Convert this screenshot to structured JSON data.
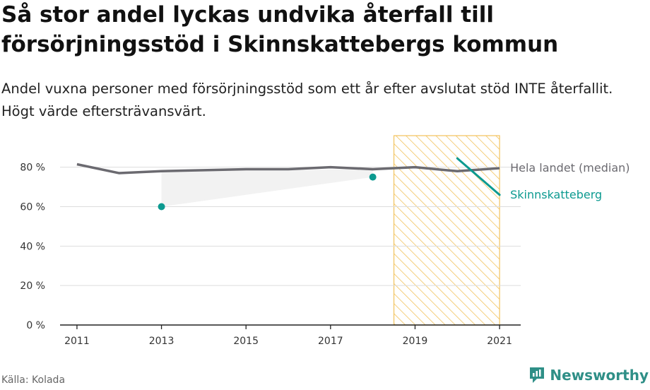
{
  "title": "Så stor andel lyckas undvika återfall till försörjningsstöd i Skinnskattebergs kommun",
  "subtitle": "Andel vuxna personer med försörjningsstöd som ett år efter avslutat stöd INTE återfallit. Högt värde eftersträvansvärt.",
  "source": "Källa: Kolada",
  "brand": "Newsworthy",
  "colors": {
    "national": "#6b6a70",
    "local": "#0c9a90",
    "highlight": "#f2c25c",
    "grid": "#dddddd"
  },
  "chart_data": {
    "type": "line",
    "x": [
      2011,
      2012,
      2013,
      2014,
      2015,
      2016,
      2017,
      2018,
      2019,
      2020,
      2021
    ],
    "xticks": [
      2011,
      2013,
      2015,
      2017,
      2019,
      2021
    ],
    "xtick_labels": [
      "2011",
      "2013",
      "2015",
      "2017",
      "2019",
      "2021"
    ],
    "yticks": [
      0,
      20,
      40,
      60,
      80
    ],
    "ytick_labels": [
      "0 %",
      "20 %",
      "40 %",
      "60 %",
      "80 %"
    ],
    "ylim": [
      0,
      96
    ],
    "xlim": [
      2010.6,
      2021.5
    ],
    "highlight_range": [
      2018.5,
      2021
    ],
    "series": [
      {
        "name": "Hela landet (median)",
        "values": [
          81.5,
          77,
          78,
          78.5,
          79,
          79,
          80,
          79,
          80,
          78,
          79.5
        ]
      },
      {
        "name": "Skinnskatteberg",
        "values": [
          null,
          null,
          60,
          null,
          null,
          null,
          null,
          75,
          null,
          84.5,
          66
        ]
      }
    ]
  }
}
